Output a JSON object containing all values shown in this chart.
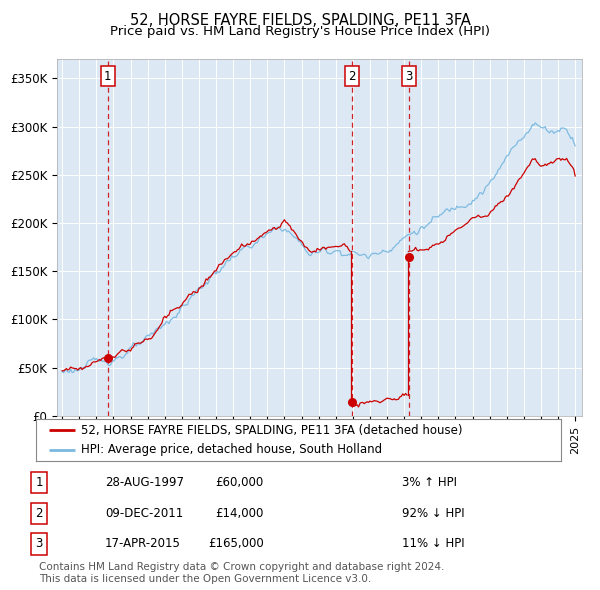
{
  "title": "52, HORSE FAYRE FIELDS, SPALDING, PE11 3FA",
  "subtitle": "Price paid vs. HM Land Registry's House Price Index (HPI)",
  "ylim": [
    0,
    370000
  ],
  "yticks": [
    0,
    50000,
    100000,
    150000,
    200000,
    250000,
    300000,
    350000
  ],
  "ytick_labels": [
    "£0",
    "£50K",
    "£100K",
    "£150K",
    "£200K",
    "£250K",
    "£300K",
    "£350K"
  ],
  "plot_bg_color": "#dce9f5",
  "grid_color": "#ffffff",
  "hpi_color": "#7ab8e0",
  "price_color": "#cc0000",
  "marker_color": "#cc0000",
  "vline_color": "#cc0000",
  "transactions": [
    {
      "date_num": 1997.66,
      "price": 60000,
      "label": "1"
    },
    {
      "date_num": 2011.94,
      "price": 14000,
      "label": "2"
    },
    {
      "date_num": 2015.29,
      "price": 165000,
      "label": "3"
    }
  ],
  "legend_entries": [
    "52, HORSE FAYRE FIELDS, SPALDING, PE11 3FA (detached house)",
    "HPI: Average price, detached house, South Holland"
  ],
  "table_rows": [
    [
      "1",
      "28-AUG-1997",
      "£60,000",
      "3% ↑ HPI"
    ],
    [
      "2",
      "09-DEC-2011",
      "£14,000",
      "92% ↓ HPI"
    ],
    [
      "3",
      "17-APR-2015",
      "£165,000",
      "11% ↓ HPI"
    ]
  ],
  "footnote": "Contains HM Land Registry data © Crown copyright and database right 2024.\nThis data is licensed under the Open Government Licence v3.0.",
  "title_fontsize": 10.5,
  "subtitle_fontsize": 9.5,
  "tick_fontsize": 8.5,
  "legend_fontsize": 8.5,
  "table_fontsize": 8.5,
  "footnote_fontsize": 7.5
}
